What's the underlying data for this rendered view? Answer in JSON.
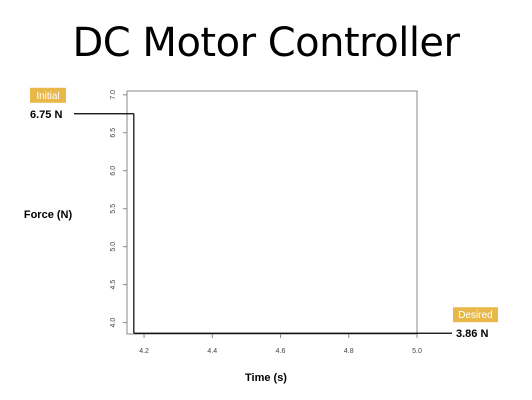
{
  "header": {
    "title": "DC Motor Controller"
  },
  "chart_data": {
    "type": "line",
    "xlabel": "Time (s)",
    "ylabel": "Force (N)",
    "xlim": [
      4.15,
      5.0
    ],
    "ylim": [
      3.85,
      7.05
    ],
    "x_ticks": [
      4.2,
      4.4,
      4.6,
      4.8,
      5.0
    ],
    "x_tick_labels": [
      "4.2",
      "4.4",
      "4.6",
      "4.8",
      "5.0"
    ],
    "y_ticks": [
      4.0,
      4.5,
      5.0,
      5.5,
      6.0,
      6.5,
      7.0
    ],
    "y_tick_labels": [
      "4.0",
      "4.5",
      "5.0",
      "5.5",
      "6.0",
      "6.5",
      "7.0"
    ],
    "grid": false,
    "series": [
      {
        "x": [
          4.17,
          4.17
        ],
        "y": [
          6.75,
          3.86
        ]
      }
    ],
    "annotations": [
      {
        "badge": "Initial",
        "value": 6.75,
        "label": "6.75 N",
        "side": "left"
      },
      {
        "badge": "Desired",
        "value": 3.86,
        "label": "3.86 N",
        "side": "right"
      }
    ],
    "colors": {
      "badge": "#e8b84a",
      "line": "#000000",
      "axis": "#888888"
    }
  }
}
